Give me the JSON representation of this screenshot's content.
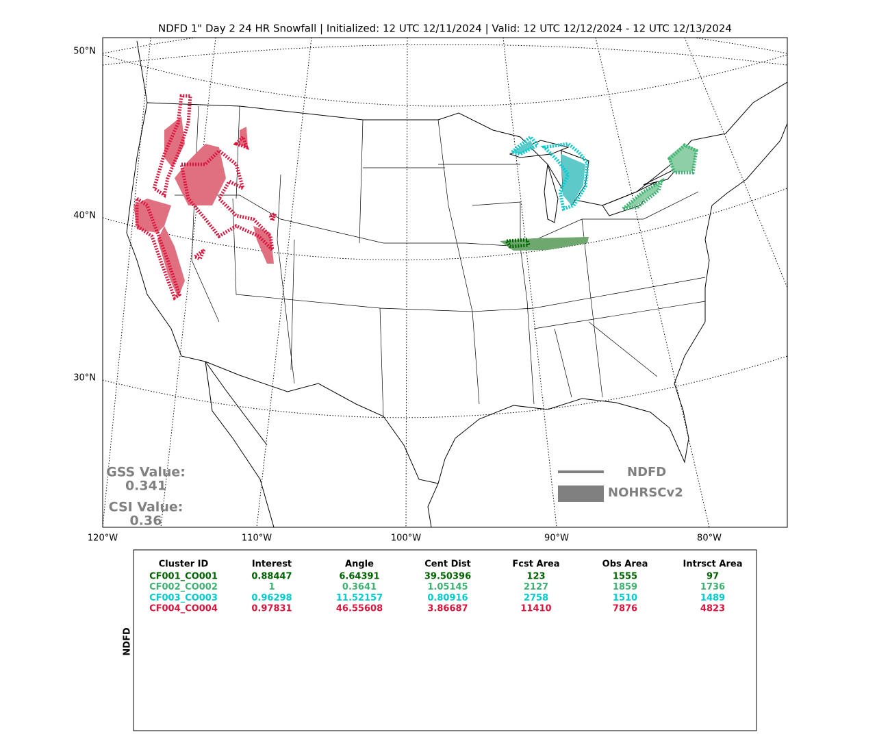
{
  "header": {
    "title": "NDFD 1\" Day 2 24 HR Snowfall | Initialized: 12 UTC 12/11/2024 | Valid: 12 UTC 12/12/2024 - 12 UTC 12/13/2024"
  },
  "map": {
    "lat_labels": [
      "50°N",
      "40°N",
      "30°N"
    ],
    "lon_labels": [
      "120°W",
      "110°W",
      "100°W",
      "90°W",
      "80°W"
    ],
    "scores": {
      "gss_label": "GSS Value:",
      "gss": 0.341,
      "csi_label": "CSI Value:",
      "csi": 0.36
    },
    "legend": [
      "NDFD",
      "NOHRSCv2"
    ]
  },
  "table": {
    "side_label": "NDFD",
    "columns": [
      "Cluster ID",
      "Interest",
      "Angle",
      "Cent Dist",
      "Fcst Area",
      "Obs Area",
      "Intrsct Area"
    ],
    "rows": [
      {
        "color": "#006400",
        "cells": [
          "CF001_CO001",
          0.88447,
          6.64391,
          39.50396,
          123,
          1555,
          97
        ]
      },
      {
        "color": "#3cb371",
        "cells": [
          "CF002_CO002",
          1,
          0.3641,
          1.05145,
          2127,
          1859,
          1736
        ]
      },
      {
        "color": "#00ced1",
        "cells": [
          "CF003_CO003",
          0.96298,
          11.52157,
          0.80916,
          2758,
          1510,
          1489
        ]
      },
      {
        "color": "#dc143c",
        "cells": [
          "CF004_CO004",
          0.97831,
          46.55608,
          3.86687,
          11410,
          7876,
          4823
        ]
      }
    ]
  }
}
